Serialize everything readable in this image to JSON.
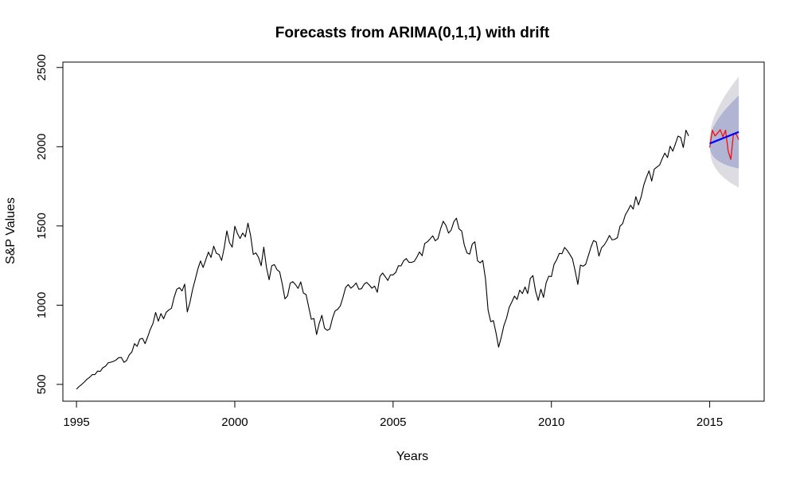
{
  "chart_data": {
    "type": "line",
    "title": "Forecasts from ARIMA(0,1,1) with drift",
    "xlabel": "Years",
    "ylabel": "S&P Values",
    "xlim": [
      1994.57,
      2016.72
    ],
    "ylim": [
      394,
      2534
    ],
    "x_ticks": [
      1995,
      2000,
      2005,
      2010,
      2015
    ],
    "y_ticks": [
      500,
      1000,
      1500,
      2000,
      2500
    ],
    "grid": false,
    "colors": {
      "history": "#000000",
      "forecast": "#0000ff",
      "actual": "#ff0000",
      "band_95": "#dcdce2",
      "band_80": "#b1b5d3"
    },
    "history": {
      "x_start": 1995.0,
      "x_step": 0.0833333,
      "values": [
        470,
        487,
        500,
        515,
        533,
        545,
        562,
        562,
        584,
        582,
        605,
        615,
        636,
        640,
        645,
        654,
        669,
        670,
        639,
        651,
        687,
        705,
        757,
        740,
        786,
        791,
        757,
        801,
        848,
        885,
        954,
        899,
        947,
        914,
        955,
        970,
        980,
        1049,
        1101,
        1111,
        1090,
        1133,
        957,
        1017,
        1098,
        1163,
        1229,
        1279,
        1238,
        1286,
        1335,
        1301,
        1372,
        1328,
        1320,
        1282,
        1362,
        1469,
        1394,
        1366,
        1498,
        1452,
        1421,
        1455,
        1431,
        1518,
        1437,
        1320,
        1330,
        1301,
        1249,
        1366,
        1240,
        1160,
        1249,
        1256,
        1224,
        1211,
        1133,
        1040,
        1059,
        1139,
        1148,
        1130,
        1106,
        1147,
        1076,
        1067,
        989,
        911,
        916,
        815,
        885,
        936,
        855,
        841,
        849,
        916,
        963,
        974,
        996,
        1050,
        1112,
        1130,
        1107,
        1121,
        1140,
        1101,
        1104,
        1132,
        1144,
        1127,
        1107,
        1121,
        1081,
        1181,
        1203,
        1180,
        1156,
        1191,
        1191,
        1207,
        1249,
        1248,
        1280,
        1294,
        1270,
        1270,
        1276,
        1303,
        1336,
        1312,
        1389,
        1400,
        1418,
        1438,
        1406,
        1420,
        1482,
        1530,
        1504,
        1455,
        1474,
        1526,
        1549,
        1481,
        1468,
        1379,
        1330,
        1322,
        1385,
        1400,
        1280,
        1267,
        1282,
        1166,
        968,
        896,
        903,
        826,
        735,
        797,
        872,
        919,
        987,
        1020,
        1057,
        1036,
        1095,
        1073,
        1115,
        1073,
        1169,
        1187,
        1089,
        1030,
        1101,
        1049,
        1141,
        1183,
        1180,
        1257,
        1286,
        1327,
        1325,
        1364,
        1345,
        1320,
        1292,
        1218,
        1131,
        1253,
        1246,
        1258,
        1312,
        1366,
        1408,
        1398,
        1310,
        1362,
        1379,
        1406,
        1440,
        1412,
        1416,
        1426,
        1498,
        1514,
        1569,
        1597,
        1631,
        1606,
        1685,
        1633,
        1682,
        1757,
        1806,
        1848,
        1783,
        1859,
        1872,
        1884,
        1924,
        1960,
        1931,
        2003,
        1972,
        2018,
        2067,
        2059,
        1995,
        2104,
        2068
      ]
    },
    "forecast": {
      "x": [
        2015.0,
        2015.917
      ],
      "values": [
        2020,
        2093
      ]
    },
    "actual": {
      "x": [
        2015.0,
        2015.083,
        2015.167,
        2015.25,
        2015.333,
        2015.417,
        2015.5,
        2015.583,
        2015.667,
        2015.75,
        2015.833,
        2015.917
      ],
      "values": [
        1995,
        2104,
        2068,
        2086,
        2107,
        2063,
        2104,
        1972,
        1920,
        2079,
        2080,
        2044
      ]
    },
    "band_80": {
      "x": [
        2015.0,
        2015.917
      ],
      "lower": [
        2005,
        1863
      ],
      "upper": [
        2040,
        2323
      ]
    },
    "band_95": {
      "x": [
        2015.0,
        2015.917
      ],
      "lower": [
        1995,
        1743
      ],
      "upper": [
        2050,
        2443
      ]
    }
  }
}
